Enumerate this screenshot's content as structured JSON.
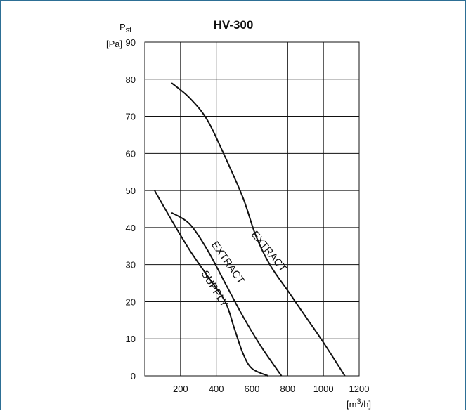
{
  "chart_data": {
    "type": "line",
    "title": "HV-300",
    "ylabel_symbol": "P",
    "ylabel_subscript": "st",
    "ylabel_unit": "[Pa]",
    "xlabel_unit_prefix": "[m",
    "xlabel_unit_sup": "3",
    "xlabel_unit_suffix": "/h]",
    "xlim": [
      0,
      1200
    ],
    "ylim": [
      0,
      90
    ],
    "x_ticks": [
      200,
      400,
      600,
      800,
      1000,
      1200
    ],
    "y_ticks": [
      0,
      10,
      20,
      30,
      40,
      50,
      60,
      70,
      80,
      90
    ],
    "grid": true,
    "series": [
      {
        "name": "EXTRACT",
        "points": [
          [
            150,
            79
          ],
          [
            250,
            75
          ],
          [
            350,
            69
          ],
          [
            450,
            59
          ],
          [
            550,
            48
          ],
          [
            620,
            38
          ],
          [
            700,
            30
          ],
          [
            800,
            23
          ],
          [
            900,
            16
          ],
          [
            1000,
            9
          ],
          [
            1120,
            0
          ]
        ]
      },
      {
        "name": "EXTRACT",
        "points": [
          [
            150,
            44
          ],
          [
            250,
            41
          ],
          [
            350,
            34
          ],
          [
            450,
            25
          ],
          [
            550,
            16
          ],
          [
            650,
            8
          ],
          [
            765,
            0
          ]
        ]
      },
      {
        "name": "SUPPLY",
        "points": [
          [
            55,
            50
          ],
          [
            150,
            42
          ],
          [
            250,
            34
          ],
          [
            350,
            27
          ],
          [
            450,
            20
          ],
          [
            500,
            13
          ],
          [
            550,
            6
          ],
          [
            600,
            2
          ],
          [
            690,
            0
          ]
        ]
      }
    ]
  }
}
